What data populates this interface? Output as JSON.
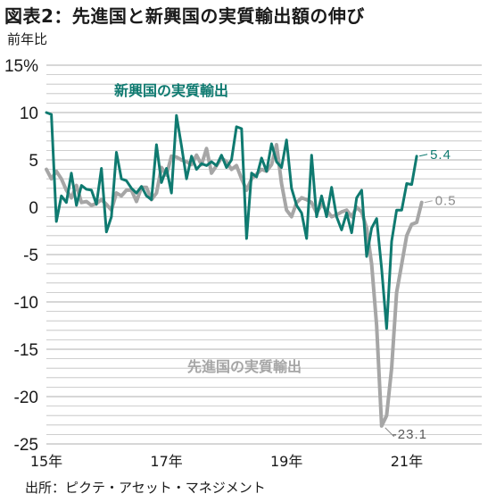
{
  "header": {
    "title": "図表2：先進国と新興国の実質輸出額の伸び",
    "unit": "前年比"
  },
  "footer": {
    "source": "出所：ピクテ・アセット・マネジメント"
  },
  "colors": {
    "emerging": "#0f7a70",
    "advanced": "#a6a6a6",
    "grid": "#bfbfbf"
  },
  "chart_data": {
    "type": "line",
    "title": "図表2：先進国と新興国の実質輸出額の伸び",
    "ylabel": "前年比",
    "xlabel": "",
    "ylim": [
      -25,
      15
    ],
    "yticks": [
      15,
      10,
      5,
      0,
      -5,
      -10,
      -15,
      -20,
      -25
    ],
    "ytick_labels": [
      "15%",
      "10",
      "5",
      "0",
      "-5",
      "-10",
      "-15",
      "-20",
      "-25"
    ],
    "xticks": [
      {
        "x": 2015,
        "label": "15年"
      },
      {
        "x": 2017,
        "label": "17年"
      },
      {
        "x": 2019,
        "label": "19年"
      },
      {
        "x": 2021,
        "label": "21年"
      }
    ],
    "xlim": [
      2015,
      2022.25
    ],
    "grid": true,
    "series": [
      {
        "name": "新興国の実質輸出",
        "x_start": 2015.0,
        "x_step": 0.083333,
        "end_label": "5.4",
        "values": [
          10.0,
          9.8,
          -1.5,
          1.2,
          0.5,
          3.6,
          0.2,
          2.3,
          1.9,
          1.8,
          0.3,
          4.1,
          -2.6,
          -1.0,
          5.8,
          3.0,
          2.8,
          2.0,
          1.5,
          2.2,
          1.2,
          0.8,
          6.6,
          2.6,
          4.1,
          1.5,
          9.7,
          6.5,
          3.0,
          5.4,
          4.0,
          4.6,
          4.4,
          4.8,
          4.4,
          5.5,
          4.2,
          5.0,
          8.5,
          8.3,
          -3.3,
          3.6,
          3.2,
          5.2,
          3.8,
          6.7,
          4.8,
          4.2,
          7.1,
          2.0,
          0.2,
          -0.6,
          -3.3,
          5.5,
          -1.0,
          1.2,
          -1.0,
          2.1,
          -1.0,
          -2.4,
          -0.6,
          -2.7,
          1.0,
          1.8,
          -5.2,
          -2.2,
          -1.2,
          -6.5,
          -12.8,
          -3.6,
          -0.3,
          -0.3,
          2.5,
          2.4,
          5.4
        ]
      },
      {
        "name": "先進国の実質輸出",
        "x_start": 2015.0,
        "x_step": 0.083333,
        "end_label": "0.5",
        "values": [
          4.0,
          3.0,
          3.8,
          3.0,
          1.8,
          1.0,
          2.3,
          0.5,
          0.6,
          0.2,
          0.4,
          0.8,
          0.3,
          -0.3,
          1.5,
          1.2,
          1.8,
          1.8,
          0.6,
          2.1,
          2.1,
          0.8,
          1.5,
          4.2,
          3.4,
          5.4,
          5.3,
          5.0,
          4.8,
          4.5,
          5.5,
          4.5,
          6.2,
          3.6,
          4.4,
          5.2,
          4.8,
          4.0,
          4.4,
          3.0,
          1.8,
          3.0,
          3.5,
          4.0,
          3.8,
          4.5,
          6.6,
          2.5,
          -0.3,
          -1.0,
          0.5,
          1.0,
          0.8,
          0.5,
          -0.6,
          0.3,
          -0.3,
          -1.0,
          -0.8,
          -0.5,
          -0.3,
          -1.0,
          0.0,
          -0.5,
          -2.2,
          -6.0,
          -12.5,
          -23.1,
          -22.0,
          -17.0,
          -9.0,
          -6.0,
          -3.0,
          -1.8,
          -1.6,
          0.5
        ]
      }
    ],
    "annotations": [
      {
        "text": "新興国の実質輸出",
        "series": 0
      },
      {
        "text": "先進国の実質輸出",
        "series": 1
      },
      {
        "text": "-23.1",
        "series": 1
      }
    ]
  }
}
